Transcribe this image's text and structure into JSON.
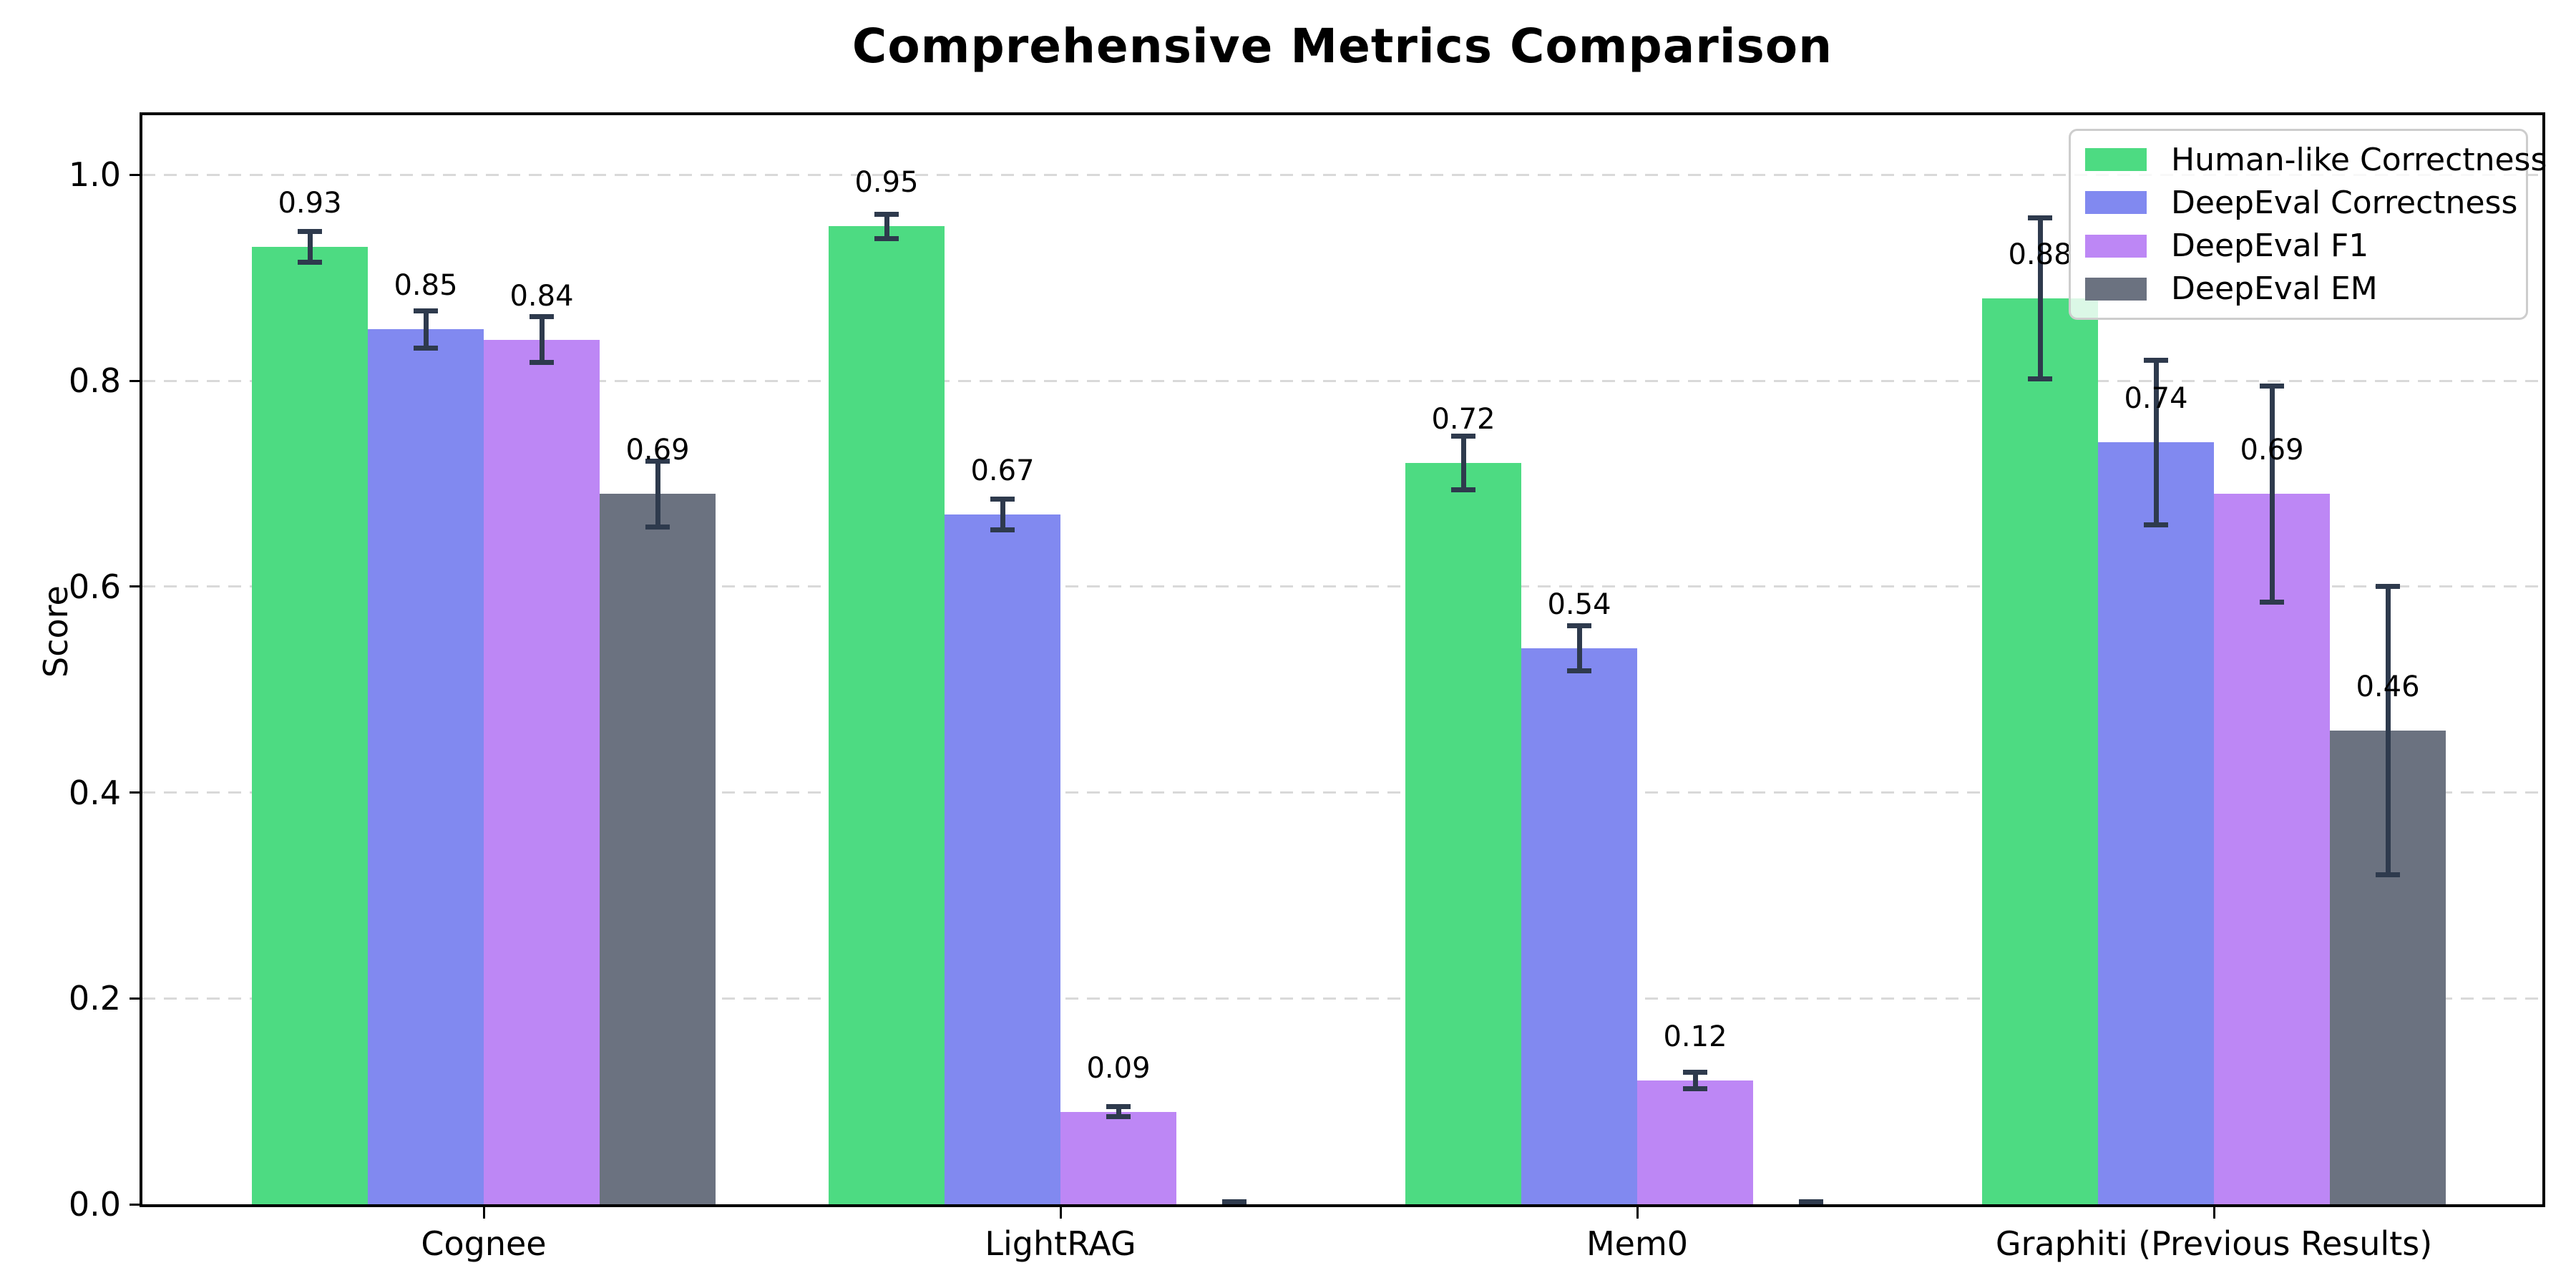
{
  "title": "Comprehensive Metrics Comparison",
  "chart_data": {
    "type": "bar",
    "title": "Comprehensive Metrics Comparison",
    "xlabel": "",
    "ylabel": "Score",
    "ylim": [
      0,
      1.058
    ],
    "yticks": [
      "0.0",
      "0.2",
      "0.4",
      "0.6",
      "0.8",
      "1.0"
    ],
    "grid": "horizontal dashed gridlines at each y tick",
    "legend_position": "upper right",
    "error_bar_color": "#2E3A4D",
    "categories": [
      "Cognee",
      "LightRAG",
      "Mem0",
      "Graphiti (Previous Results)"
    ],
    "series": [
      {
        "name": "Human-like Correctness",
        "color": "#4DDB82",
        "values": [
          0.93,
          0.95,
          0.72,
          0.88
        ],
        "errors": [
          0.015,
          0.012,
          0.026,
          0.078
        ],
        "labels": [
          "0.93",
          "0.95",
          "0.72",
          "0.88"
        ]
      },
      {
        "name": "DeepEval Correctness",
        "color": "#8189F0",
        "values": [
          0.85,
          0.67,
          0.54,
          0.74
        ],
        "errors": [
          0.018,
          0.015,
          0.022,
          0.08
        ],
        "labels": [
          "0.85",
          "0.67",
          "0.54",
          "0.74"
        ]
      },
      {
        "name": "DeepEval F1",
        "color": "#BD87F5",
        "values": [
          0.84,
          0.09,
          0.12,
          0.69
        ],
        "errors": [
          0.022,
          0.005,
          0.008,
          0.105
        ],
        "labels": [
          "0.84",
          "0.09",
          "0.12",
          "0.69"
        ]
      },
      {
        "name": "DeepEval EM",
        "color": "#6B7280",
        "values": [
          0.69,
          0.0,
          0.0,
          0.46
        ],
        "errors": [
          0.032,
          0.002,
          0.002,
          0.14
        ],
        "labels": [
          "0.69",
          "",
          "",
          "0.46"
        ]
      }
    ]
  }
}
